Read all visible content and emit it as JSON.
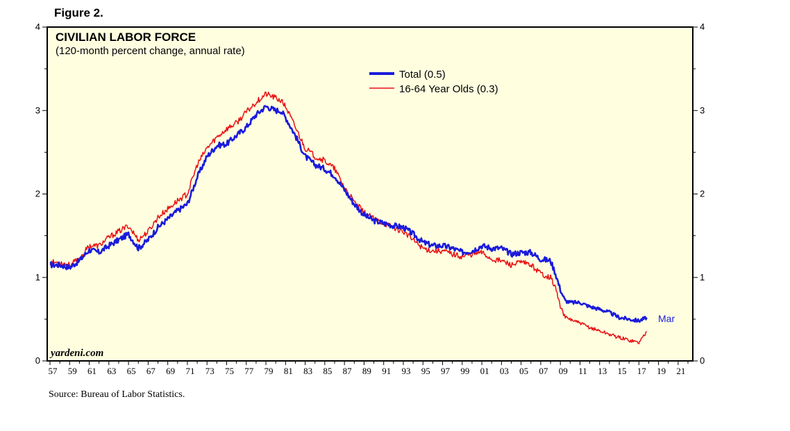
{
  "figure_label": "Figure 2.",
  "source": "Source: Bureau of Labor Statistics.",
  "chart_data": {
    "type": "line",
    "title": "CIVILIAN LABOR FORCE",
    "subtitle": "(120-month percent change, annual rate)",
    "watermark": "yardeni.com",
    "end_label": "Mar",
    "xlabel": "",
    "ylabel": "",
    "xlim": [
      1957,
      2022
    ],
    "ylim": [
      0,
      4
    ],
    "y_ticks": [
      0,
      1,
      2,
      3,
      4
    ],
    "x_tick_labels": [
      "57",
      "59",
      "61",
      "63",
      "65",
      "67",
      "69",
      "71",
      "73",
      "75",
      "77",
      "79",
      "81",
      "83",
      "85",
      "87",
      "89",
      "91",
      "93",
      "95",
      "97",
      "99",
      "01",
      "03",
      "05",
      "07",
      "09",
      "11",
      "13",
      "15",
      "17",
      "19",
      "21"
    ],
    "legend_position": "top-center",
    "colors": {
      "total": "#1a1adc",
      "age_16_64": "#e81010",
      "plot_bg": "#ffffe0"
    },
    "series": [
      {
        "name": "Total (0.5)",
        "key": "total",
        "points": [
          [
            1957.0,
            1.15
          ],
          [
            1958.0,
            1.15
          ],
          [
            1959.0,
            1.12
          ],
          [
            1960.0,
            1.2
          ],
          [
            1961.0,
            1.33
          ],
          [
            1962.0,
            1.3
          ],
          [
            1963.0,
            1.38
          ],
          [
            1964.0,
            1.45
          ],
          [
            1965.0,
            1.52
          ],
          [
            1966.0,
            1.35
          ],
          [
            1967.0,
            1.45
          ],
          [
            1968.0,
            1.6
          ],
          [
            1969.0,
            1.7
          ],
          [
            1970.0,
            1.8
          ],
          [
            1971.0,
            1.88
          ],
          [
            1972.0,
            2.2
          ],
          [
            1973.0,
            2.45
          ],
          [
            1974.0,
            2.58
          ],
          [
            1975.0,
            2.6
          ],
          [
            1976.0,
            2.7
          ],
          [
            1977.0,
            2.8
          ],
          [
            1978.0,
            2.95
          ],
          [
            1979.0,
            3.05
          ],
          [
            1980.0,
            3.0
          ],
          [
            1980.5,
            3.0
          ],
          [
            1981.0,
            2.92
          ],
          [
            1982.0,
            2.7
          ],
          [
            1983.0,
            2.45
          ],
          [
            1984.0,
            2.35
          ],
          [
            1985.0,
            2.3
          ],
          [
            1986.0,
            2.22
          ],
          [
            1987.0,
            2.05
          ],
          [
            1988.0,
            1.88
          ],
          [
            1989.0,
            1.75
          ],
          [
            1990.0,
            1.68
          ],
          [
            1991.0,
            1.65
          ],
          [
            1992.0,
            1.62
          ],
          [
            1993.0,
            1.6
          ],
          [
            1994.0,
            1.52
          ],
          [
            1995.0,
            1.42
          ],
          [
            1996.0,
            1.38
          ],
          [
            1997.0,
            1.38
          ],
          [
            1998.0,
            1.35
          ],
          [
            1999.0,
            1.3
          ],
          [
            2000.0,
            1.32
          ],
          [
            2001.0,
            1.38
          ],
          [
            2002.0,
            1.35
          ],
          [
            2003.0,
            1.35
          ],
          [
            2004.0,
            1.28
          ],
          [
            2005.0,
            1.3
          ],
          [
            2006.0,
            1.3
          ],
          [
            2007.0,
            1.22
          ],
          [
            2008.0,
            1.2
          ],
          [
            2008.5,
            1.05
          ],
          [
            2009.0,
            0.85
          ],
          [
            2009.5,
            0.72
          ],
          [
            2010.0,
            0.7
          ],
          [
            2011.0,
            0.7
          ],
          [
            2012.0,
            0.65
          ],
          [
            2013.0,
            0.62
          ],
          [
            2014.0,
            0.58
          ],
          [
            2015.0,
            0.52
          ],
          [
            2016.0,
            0.5
          ],
          [
            2017.0,
            0.48
          ],
          [
            2017.8,
            0.52
          ]
        ]
      },
      {
        "name": "16-64 Year Olds (0.3)",
        "key": "age_16_64",
        "points": [
          [
            1957.0,
            1.18
          ],
          [
            1958.0,
            1.18
          ],
          [
            1959.0,
            1.15
          ],
          [
            1960.0,
            1.22
          ],
          [
            1961.0,
            1.38
          ],
          [
            1962.0,
            1.38
          ],
          [
            1963.0,
            1.48
          ],
          [
            1964.0,
            1.55
          ],
          [
            1965.0,
            1.62
          ],
          [
            1966.0,
            1.45
          ],
          [
            1967.0,
            1.55
          ],
          [
            1968.0,
            1.72
          ],
          [
            1969.0,
            1.82
          ],
          [
            1970.0,
            1.92
          ],
          [
            1971.0,
            2.0
          ],
          [
            1972.0,
            2.35
          ],
          [
            1973.0,
            2.55
          ],
          [
            1974.0,
            2.68
          ],
          [
            1975.0,
            2.78
          ],
          [
            1976.0,
            2.85
          ],
          [
            1977.0,
            2.98
          ],
          [
            1978.0,
            3.1
          ],
          [
            1979.0,
            3.2
          ],
          [
            1980.0,
            3.15
          ],
          [
            1980.5,
            3.12
          ],
          [
            1981.0,
            3.05
          ],
          [
            1982.0,
            2.8
          ],
          [
            1983.0,
            2.55
          ],
          [
            1984.0,
            2.45
          ],
          [
            1985.0,
            2.4
          ],
          [
            1986.0,
            2.3
          ],
          [
            1987.0,
            2.08
          ],
          [
            1988.0,
            1.9
          ],
          [
            1989.0,
            1.78
          ],
          [
            1990.0,
            1.7
          ],
          [
            1991.0,
            1.65
          ],
          [
            1992.0,
            1.6
          ],
          [
            1993.0,
            1.55
          ],
          [
            1994.0,
            1.45
          ],
          [
            1995.0,
            1.35
          ],
          [
            1996.0,
            1.32
          ],
          [
            1997.0,
            1.32
          ],
          [
            1998.0,
            1.28
          ],
          [
            1999.0,
            1.25
          ],
          [
            2000.0,
            1.28
          ],
          [
            2001.0,
            1.3
          ],
          [
            2002.0,
            1.22
          ],
          [
            2003.0,
            1.2
          ],
          [
            2004.0,
            1.15
          ],
          [
            2005.0,
            1.18
          ],
          [
            2006.0,
            1.15
          ],
          [
            2007.0,
            1.05
          ],
          [
            2008.0,
            1.0
          ],
          [
            2008.5,
            0.88
          ],
          [
            2009.0,
            0.65
          ],
          [
            2009.5,
            0.52
          ],
          [
            2010.0,
            0.5
          ],
          [
            2011.0,
            0.45
          ],
          [
            2012.0,
            0.4
          ],
          [
            2013.0,
            0.36
          ],
          [
            2014.0,
            0.32
          ],
          [
            2015.0,
            0.28
          ],
          [
            2016.0,
            0.25
          ],
          [
            2017.0,
            0.22
          ],
          [
            2017.8,
            0.35
          ]
        ]
      }
    ]
  }
}
